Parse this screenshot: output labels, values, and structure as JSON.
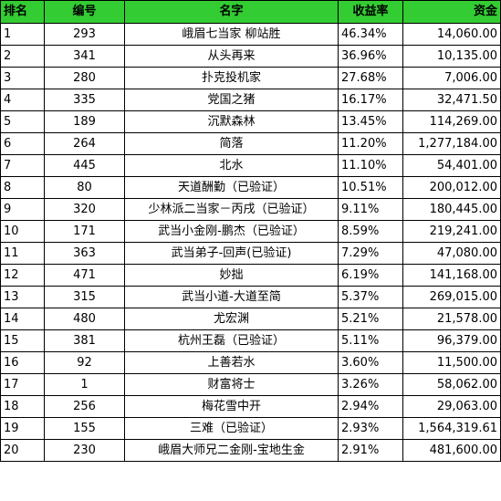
{
  "table": {
    "headers": {
      "rank": "排名",
      "id": "编号",
      "name": "名字",
      "rate": "收益率",
      "fund": "资金"
    },
    "header_bg": "#33cc33",
    "rows": [
      {
        "rank": "1",
        "id": "293",
        "name": "峨眉七当家  柳站胜",
        "rate": "46.34%",
        "fund": "14,060.00"
      },
      {
        "rank": "2",
        "id": "341",
        "name": "从头再来",
        "rate": "36.96%",
        "fund": "10,135.00"
      },
      {
        "rank": "3",
        "id": "280",
        "name": "扑克投机家",
        "rate": "27.68%",
        "fund": "7,006.00"
      },
      {
        "rank": "4",
        "id": "335",
        "name": "党国之猪",
        "rate": "16.17%",
        "fund": "32,471.50"
      },
      {
        "rank": "5",
        "id": "189",
        "name": "沉默森林",
        "rate": "13.45%",
        "fund": "114,269.00"
      },
      {
        "rank": "6",
        "id": "264",
        "name": "简落",
        "rate": "11.20%",
        "fund": "1,277,184.00"
      },
      {
        "rank": "7",
        "id": "445",
        "name": "北水",
        "rate": "11.10%",
        "fund": "54,401.00"
      },
      {
        "rank": "8",
        "id": "80",
        "name": "天道酬勤（已验证）",
        "rate": "10.51%",
        "fund": "200,012.00"
      },
      {
        "rank": "9",
        "id": "320",
        "name": "少林派二当家－丙戌（已验证）",
        "rate": "9.11%",
        "fund": "180,445.00"
      },
      {
        "rank": "10",
        "id": "171",
        "name": "武当小金刚-鹏杰（已验证）",
        "rate": "8.59%",
        "fund": "219,241.00"
      },
      {
        "rank": "11",
        "id": "363",
        "name": "武当弟子-回声(已验证)",
        "rate": "7.29%",
        "fund": "47,080.00"
      },
      {
        "rank": "12",
        "id": "471",
        "name": "妙拙",
        "rate": "6.19%",
        "fund": "141,168.00"
      },
      {
        "rank": "13",
        "id": "315",
        "name": "武当小道-大道至简",
        "rate": "5.37%",
        "fund": "269,015.00"
      },
      {
        "rank": "14",
        "id": "480",
        "name": "尤宏渊",
        "rate": "5.21%",
        "fund": "21,578.00"
      },
      {
        "rank": "15",
        "id": "381",
        "name": "杭州王磊（已验证）",
        "rate": "5.11%",
        "fund": "96,379.00"
      },
      {
        "rank": "16",
        "id": "92",
        "name": "上善若水",
        "rate": "3.60%",
        "fund": "11,500.00"
      },
      {
        "rank": "17",
        "id": "1",
        "name": "财富将士",
        "rate": "3.26%",
        "fund": "58,062.00"
      },
      {
        "rank": "18",
        "id": "256",
        "name": "梅花雪中开",
        "rate": "2.94%",
        "fund": "29,063.00"
      },
      {
        "rank": "19",
        "id": "155",
        "name": "三难（已验证）",
        "rate": "2.93%",
        "fund": "1,564,319.61"
      },
      {
        "rank": "20",
        "id": "230",
        "name": "峨眉大师兄二金刚-宝地生金",
        "rate": "2.91%",
        "fund": "481,600.00"
      }
    ]
  }
}
